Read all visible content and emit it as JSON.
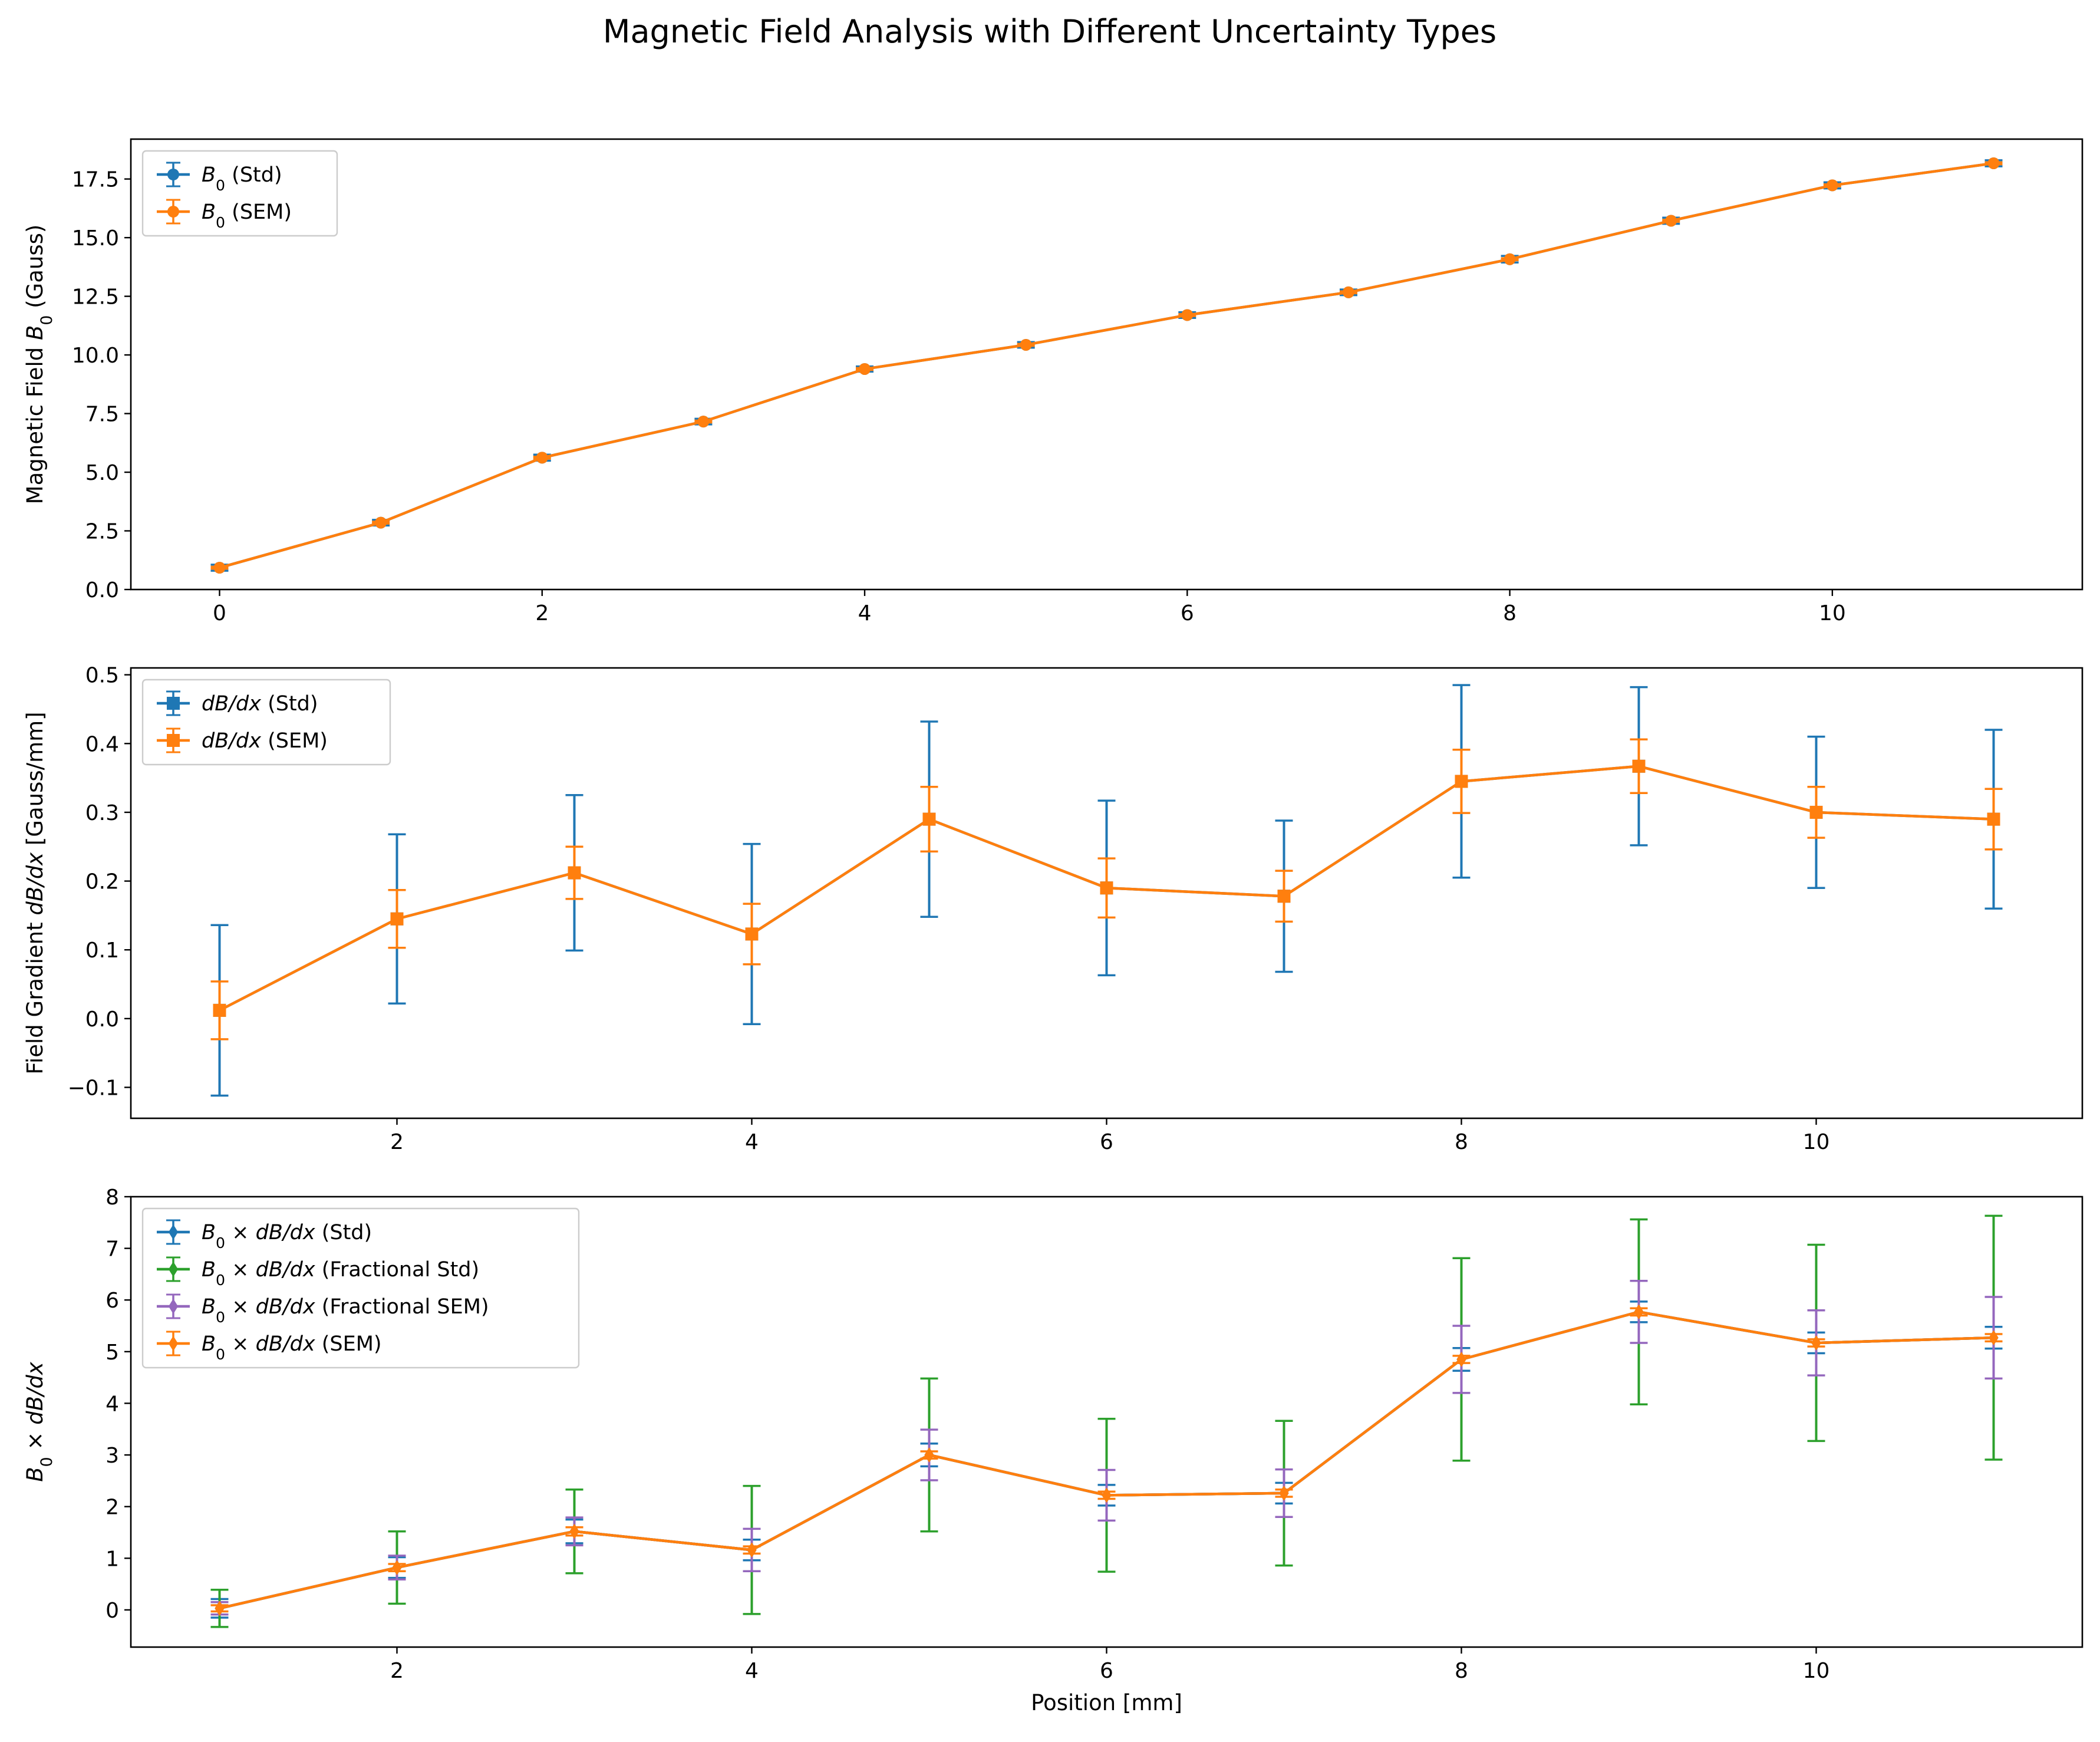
{
  "figure": {
    "title": "Magnetic Field Analysis with Different Uncertainty Types"
  },
  "colors": {
    "blue": "#1f77b4",
    "orange": "#ff7f0e",
    "green": "#2ca02c",
    "purple": "#9467bd"
  },
  "chart_data": [
    {
      "type": "line",
      "xlabel": "",
      "ylabel": "Magnetic Field B0 (Gauss)",
      "xlim": [
        -0.55,
        11.55
      ],
      "ylim": [
        0,
        19.2
      ],
      "xticks": [
        0,
        2,
        4,
        6,
        8,
        10
      ],
      "xtick_labels": [
        "0",
        "2",
        "4",
        "6",
        "8",
        "10"
      ],
      "yticks": [
        0,
        2.5,
        5,
        7.5,
        10,
        12.5,
        15,
        17.5
      ],
      "ytick_labels": [
        "0.0",
        "2.5",
        "5.0",
        "7.5",
        "10.0",
        "12.5",
        "15.0",
        "17.5"
      ],
      "grid": false,
      "legend": "top-left",
      "x": [
        0,
        1,
        2,
        3,
        4,
        5,
        6,
        7,
        8,
        9,
        10,
        11
      ],
      "series": [
        {
          "name": "B0 (Std)",
          "legend_label": "B₀ (Std)",
          "marker": "circle",
          "color": "#1f77b4",
          "values": [
            0.93,
            2.85,
            5.62,
            7.16,
            9.4,
            10.43,
            11.7,
            12.67,
            14.08,
            15.72,
            17.23,
            18.17
          ],
          "err": [
            0.13,
            0.12,
            0.13,
            0.12,
            0.11,
            0.12,
            0.12,
            0.12,
            0.14,
            0.13,
            0.13,
            0.13
          ]
        },
        {
          "name": "B0 (SEM)",
          "legend_label": "B₀ (SEM)",
          "marker": "circle",
          "color": "#ff7f0e",
          "values": [
            0.93,
            2.85,
            5.62,
            7.16,
            9.4,
            10.43,
            11.7,
            12.67,
            14.08,
            15.72,
            17.23,
            18.17
          ],
          "err": [
            0.04,
            0.04,
            0.04,
            0.04,
            0.04,
            0.04,
            0.04,
            0.04,
            0.04,
            0.04,
            0.04,
            0.04
          ]
        }
      ]
    },
    {
      "type": "line",
      "xlabel": "",
      "ylabel": "Field Gradient dB/dx [Gauss/mm]",
      "xlim": [
        0.5,
        11.5
      ],
      "ylim": [
        -0.145,
        0.51
      ],
      "xticks": [
        2,
        4,
        6,
        8,
        10
      ],
      "xtick_labels": [
        "2",
        "4",
        "6",
        "8",
        "10"
      ],
      "yticks": [
        -0.1,
        0,
        0.1,
        0.2,
        0.3,
        0.4,
        0.5
      ],
      "ytick_labels": [
        "−0.1",
        "0.0",
        "0.1",
        "0.2",
        "0.3",
        "0.4",
        "0.5"
      ],
      "grid": false,
      "legend": "top-left",
      "x": [
        1,
        2,
        3,
        4,
        5,
        6,
        7,
        8,
        9,
        10,
        11
      ],
      "series": [
        {
          "name": "dB/dx (Std)",
          "legend_label": "dB/dx (Std)",
          "marker": "square",
          "color": "#1f77b4",
          "values": [
            0.012,
            0.145,
            0.212,
            0.123,
            0.29,
            0.19,
            0.178,
            0.345,
            0.367,
            0.3,
            0.29
          ],
          "err": [
            0.124,
            0.123,
            0.113,
            0.131,
            0.142,
            0.127,
            0.11,
            0.14,
            0.115,
            0.11,
            0.13
          ]
        },
        {
          "name": "dB/dx (SEM)",
          "legend_label": "dB/dx (SEM)",
          "marker": "square",
          "color": "#ff7f0e",
          "values": [
            0.012,
            0.145,
            0.212,
            0.123,
            0.29,
            0.19,
            0.178,
            0.345,
            0.367,
            0.3,
            0.29
          ],
          "err": [
            0.042,
            0.042,
            0.038,
            0.044,
            0.047,
            0.043,
            0.037,
            0.046,
            0.039,
            0.037,
            0.044
          ]
        }
      ]
    },
    {
      "type": "line",
      "xlabel": "Position [mm]",
      "ylabel": "B0 × dB/dx",
      "xlim": [
        0.5,
        11.5
      ],
      "ylim": [
        -0.72,
        8.0
      ],
      "xticks": [
        2,
        4,
        6,
        8,
        10
      ],
      "xtick_labels": [
        "2",
        "4",
        "6",
        "8",
        "10"
      ],
      "yticks": [
        0,
        1,
        2,
        3,
        4,
        5,
        6,
        7,
        8
      ],
      "ytick_labels": [
        "0",
        "1",
        "2",
        "3",
        "4",
        "5",
        "6",
        "7",
        "8"
      ],
      "grid": false,
      "legend": "top-left",
      "x": [
        1,
        2,
        3,
        4,
        5,
        6,
        7,
        8,
        9,
        10,
        11
      ],
      "series": [
        {
          "name": "B0 × dB/dx (Std)",
          "legend_label": "B₀ × dB/dx (Std)",
          "marker": "diamond",
          "color": "#1f77b4",
          "values": [
            0.03,
            0.82,
            1.52,
            1.16,
            3.0,
            2.22,
            2.26,
            4.85,
            5.77,
            5.17,
            5.27
          ],
          "err": [
            0.18,
            0.2,
            0.23,
            0.2,
            0.22,
            0.2,
            0.2,
            0.22,
            0.2,
            0.2,
            0.21
          ]
        },
        {
          "name": "B0 × dB/dx (Fractional Std)",
          "legend_label": "B₀ × dB/dx (Fractional Std)",
          "marker": "diamond",
          "color": "#2ca02c",
          "values": [
            0.03,
            0.82,
            1.52,
            1.16,
            3.0,
            2.22,
            2.26,
            4.85,
            5.77,
            5.17,
            5.27
          ],
          "err": [
            0.36,
            0.7,
            0.81,
            1.24,
            1.48,
            1.48,
            1.4,
            1.96,
            1.79,
            1.9,
            2.36
          ]
        },
        {
          "name": "B0 × dB/dx (Fractional SEM)",
          "legend_label": "B₀ × dB/dx (Fractional SEM)",
          "marker": "diamond",
          "color": "#9467bd",
          "values": [
            0.03,
            0.82,
            1.52,
            1.16,
            3.0,
            2.22,
            2.26,
            4.85,
            5.77,
            5.17,
            5.27
          ],
          "err": [
            0.12,
            0.23,
            0.27,
            0.41,
            0.49,
            0.49,
            0.46,
            0.65,
            0.6,
            0.63,
            0.79
          ]
        },
        {
          "name": "B0 × dB/dx (SEM)",
          "legend_label": "B₀ × dB/dx (SEM)",
          "marker": "diamond",
          "color": "#ff7f0e",
          "values": [
            0.03,
            0.82,
            1.52,
            1.16,
            3.0,
            2.22,
            2.26,
            4.85,
            5.77,
            5.17,
            5.27
          ],
          "err": [
            0.06,
            0.07,
            0.08,
            0.07,
            0.07,
            0.07,
            0.07,
            0.07,
            0.07,
            0.07,
            0.07
          ]
        }
      ]
    }
  ]
}
